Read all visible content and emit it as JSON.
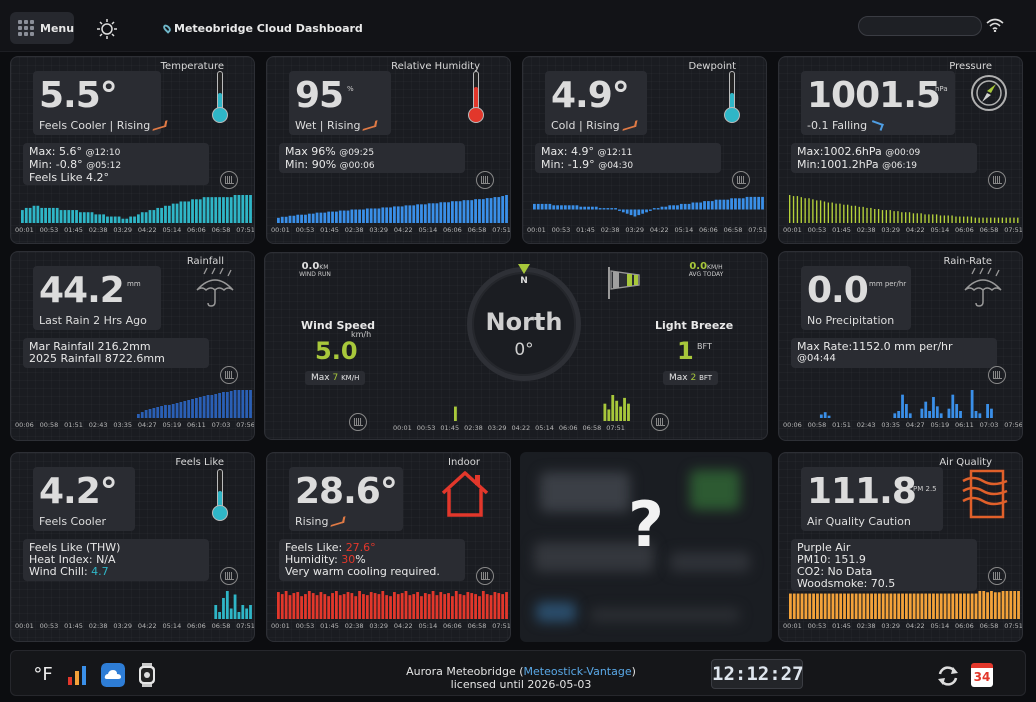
{
  "header": {
    "menu_label": "Menu",
    "title": "Meteobridge Cloud Dashboard"
  },
  "xaxis_labels": [
    "00:01",
    "00:53",
    "01:45",
    "02:38",
    "03:29",
    "04:22",
    "05:14",
    "06:06",
    "06:58",
    "07:51"
  ],
  "xaxis_labels_rain": [
    "00:06",
    "00:58",
    "01:51",
    "02:43",
    "03:35",
    "04:27",
    "05:19",
    "06:11",
    "07:03",
    "07:56"
  ],
  "temperature": {
    "title": "Temperature",
    "value": "5.5°",
    "status": "Feels Cooler | Rising",
    "max_label": "Max: 5.6°",
    "max_time": "@12:10",
    "min_label": "Min: -0.8°",
    "min_time": "@05:12",
    "feels": "Feels Like 4.2°",
    "color": "#2fb6c7",
    "values": [
      6,
      7,
      7,
      8,
      8,
      7,
      7,
      7,
      7,
      7,
      6,
      6,
      6,
      6,
      6,
      5,
      5,
      5,
      5,
      4,
      4,
      4,
      3,
      3,
      3,
      3,
      2,
      2,
      3,
      3,
      4,
      5,
      5,
      6,
      6,
      7,
      7,
      8,
      8,
      9,
      9,
      10,
      10,
      10,
      11,
      11,
      11,
      12,
      12,
      12,
      12,
      12,
      12,
      12,
      12,
      13,
      13,
      13,
      13,
      13
    ]
  },
  "humidity": {
    "title": "Relative Humidity",
    "value": "95",
    "unit": "%",
    "status": "Wet | Rising",
    "max_label": "Max 96%",
    "max_time": "@09:25",
    "min_label": "Min: 90%",
    "min_time": "@00:06",
    "color": "#3a8fe8",
    "values": [
      5,
      6,
      6,
      7,
      7,
      8,
      8,
      8,
      9,
      9,
      10,
      10,
      10,
      11,
      11,
      11,
      12,
      12,
      12,
      13,
      13,
      13,
      13,
      14,
      14,
      14,
      14,
      15,
      15,
      15,
      16,
      16,
      16,
      17,
      17,
      17,
      18,
      18,
      18,
      19,
      19,
      19,
      20,
      20,
      20,
      21,
      21,
      21,
      22,
      22,
      22,
      23,
      23,
      23,
      24,
      24,
      25,
      25,
      26,
      27
    ]
  },
  "dewpoint": {
    "title": "Dewpoint",
    "value": "4.9°",
    "status": "Cold | Rising",
    "max_label": "Max: 4.9°",
    "max_time": "@12:11",
    "min_label": "Min: -1.9°",
    "min_time": "@04:30",
    "color": "#3a8fe8",
    "values": [
      4,
      4,
      4,
      4,
      4,
      3,
      3,
      3,
      3,
      3,
      3,
      3,
      2,
      2,
      2,
      2,
      2,
      1,
      1,
      1,
      1,
      1,
      -1,
      -2,
      -3,
      -4,
      -5,
      -4,
      -3,
      -2,
      -1,
      1,
      1,
      2,
      2,
      3,
      3,
      3,
      4,
      4,
      4,
      5,
      5,
      5,
      6,
      6,
      6,
      7,
      7,
      7,
      7,
      8,
      8,
      8,
      8,
      9,
      9,
      9,
      9,
      9
    ]
  },
  "pressure": {
    "title": "Pressure",
    "value": "1001.5",
    "unit": "hPa",
    "status": "-0.1 Falling",
    "max_label": "Max:1002.6hPa",
    "max_time": "@00:09",
    "min_label": "Min:1001.2hPa",
    "min_time": "@06:19",
    "color": "#b6d23a",
    "values": [
      26,
      25,
      25,
      24,
      23,
      23,
      22,
      21,
      21,
      20,
      19,
      19,
      18,
      18,
      17,
      17,
      16,
      16,
      15,
      15,
      14,
      14,
      13,
      13,
      12,
      12,
      12,
      11,
      11,
      10,
      10,
      10,
      9,
      9,
      9,
      8,
      8,
      8,
      8,
      7,
      7,
      7,
      7,
      6,
      6,
      6,
      6,
      6,
      5,
      5,
      5,
      5,
      5,
      5,
      5,
      5,
      5,
      5,
      5,
      5
    ]
  },
  "rainfall": {
    "title": "Rainfall",
    "value": "44.2",
    "unit": "mm",
    "status": "Last Rain 2 Hrs Ago",
    "line1": "Mar Rainfall 216.2mm",
    "line2": "2025 Rainfall 8722.6mm",
    "color": "#2a5fb5",
    "values": [
      0,
      0,
      0,
      0,
      0,
      0,
      0,
      0,
      0,
      0,
      0,
      0,
      0,
      0,
      0,
      0,
      0,
      0,
      0,
      0,
      0,
      0,
      0,
      0,
      0,
      0,
      0,
      0,
      0,
      0,
      4,
      6,
      8,
      9,
      10,
      11,
      12,
      13,
      13,
      14,
      15,
      16,
      17,
      18,
      19,
      20,
      21,
      22,
      23,
      23,
      24,
      25,
      26,
      26,
      27,
      28,
      28,
      28,
      28,
      28
    ]
  },
  "wind": {
    "run_value": "0.0",
    "run_unit": "KM",
    "run_label": "WIND RUN",
    "speed_label": "Wind Speed",
    "speed_unit": "km/h",
    "speed_value": "5.0",
    "max_speed_prefix": "Max",
    "max_speed": "7",
    "max_speed_unit": "KM/H",
    "direction": "North",
    "degrees": "0°",
    "compass_n": "N",
    "avg_value": "0.0",
    "avg_unit": "KM/H",
    "avg_label": "AVG TODAY",
    "beaufort_label": "Light Breeze",
    "beaufort_value": "1",
    "beaufort_unit": "BFT",
    "max_bft_prefix": "Max",
    "max_bft": "2",
    "max_bft_unit": "BFT",
    "color": "#a8c83b",
    "values": [
      0,
      0,
      0,
      0,
      0,
      0,
      0,
      0,
      0,
      0,
      0,
      0,
      0,
      0,
      0,
      10,
      0,
      0,
      0,
      0,
      0,
      0,
      0,
      0,
      0,
      0,
      0,
      0,
      0,
      0,
      0,
      0,
      0,
      0,
      0,
      0,
      0,
      0,
      0,
      0,
      0,
      0,
      0,
      0,
      0,
      0,
      0,
      0,
      0,
      0,
      0,
      0,
      0,
      12,
      8,
      18,
      14,
      10,
      16,
      12
    ]
  },
  "rainrate": {
    "title": "Rain-Rate",
    "value": "0.0",
    "unit": "mm per/hr",
    "status": "No Precipitation",
    "line1": "Max Rate:1152.0 mm per/hr",
    "line2": "@04:44",
    "color": "#3a8fe8",
    "values": [
      0,
      0,
      0,
      0,
      0,
      0,
      0,
      0,
      3,
      5,
      2,
      0,
      0,
      0,
      0,
      0,
      0,
      0,
      0,
      0,
      0,
      0,
      0,
      0,
      0,
      0,
      0,
      4,
      6,
      20,
      12,
      4,
      0,
      0,
      8,
      14,
      6,
      18,
      10,
      4,
      0,
      8,
      20,
      12,
      6,
      0,
      0,
      24,
      6,
      4,
      0,
      12,
      8,
      0,
      0,
      0,
      0,
      0,
      0,
      0
    ]
  },
  "feelslike": {
    "title": "Feels Like",
    "value": "4.2°",
    "status": "Feels Cooler",
    "line1": "Feels Like (THW)",
    "line2": "Heat Index: N/A",
    "line3_prefix": "Wind Chill: ",
    "line3_value": "4.7",
    "color": "#2fb6c7",
    "values": [
      0,
      0,
      0,
      0,
      0,
      0,
      0,
      0,
      0,
      0,
      0,
      0,
      0,
      0,
      0,
      0,
      0,
      0,
      0,
      0,
      0,
      0,
      0,
      0,
      0,
      0,
      0,
      0,
      0,
      0,
      0,
      0,
      0,
      0,
      0,
      0,
      0,
      0,
      0,
      0,
      0,
      0,
      0,
      0,
      0,
      0,
      0,
      0,
      0,
      0,
      8,
      4,
      12,
      16,
      6,
      14,
      4,
      8,
      6,
      8
    ]
  },
  "indoor": {
    "title": "Indoor",
    "value": "28.6°",
    "status": "Rising",
    "feels_prefix": "Feels Like: ",
    "feels_value": "27.6°",
    "hum_prefix": "Humidity: ",
    "hum_value": "30",
    "hum_suffix": "%",
    "line3": "Very warm cooling required.",
    "color": "#e2372b",
    "values": [
      26,
      24,
      27,
      23,
      25,
      26,
      22,
      24,
      27,
      25,
      23,
      26,
      24,
      22,
      25,
      27,
      23,
      24,
      26,
      25,
      22,
      27,
      24,
      23,
      26,
      25,
      24,
      27,
      23,
      22,
      26,
      24,
      25,
      27,
      23,
      24,
      26,
      22,
      25,
      24,
      27,
      23,
      26,
      24,
      25,
      22,
      27,
      24,
      23,
      26,
      25,
      24,
      22,
      27,
      24,
      23,
      26,
      25,
      24,
      26
    ]
  },
  "unknown_card": {
    "symbol": "?"
  },
  "airquality": {
    "title": "Air Quality",
    "value": "111.8",
    "unit": "PM 2.5",
    "status": "Air Quality Caution",
    "line1": "Purple Air",
    "line2": "PM10: 151.9",
    "line3": "CO2: No Data",
    "line4": "Woodsmoke: 70.5",
    "color": "#f3a23a",
    "values": [
      20,
      20,
      20,
      20,
      20,
      20,
      20,
      20,
      20,
      20,
      20,
      20,
      20,
      20,
      20,
      20,
      20,
      20,
      20,
      20,
      20,
      20,
      20,
      20,
      20,
      20,
      20,
      20,
      20,
      20,
      20,
      20,
      20,
      20,
      20,
      20,
      20,
      20,
      20,
      20,
      20,
      20,
      20,
      20,
      20,
      20,
      20,
      20,
      20,
      22,
      22,
      21,
      22,
      21,
      21,
      22,
      22,
      22,
      22,
      22
    ]
  },
  "footer": {
    "unit_label": "°F",
    "brand_prefix": "Aurora Meteobridge (",
    "brand_link": "Meteostick-Vantage",
    "brand_suffix": ")",
    "license": "licensed until 2026-05-03",
    "time": "12:12:27",
    "calendar_day": "34"
  }
}
